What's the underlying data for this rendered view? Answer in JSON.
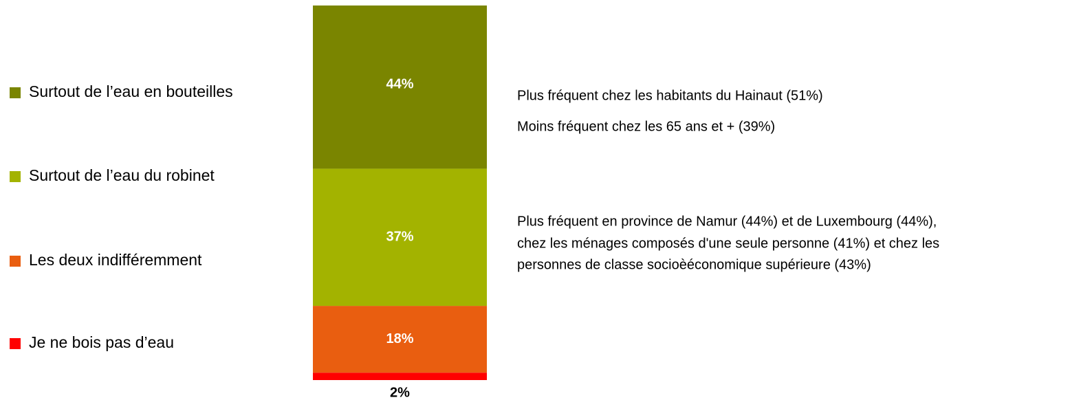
{
  "chart_data": {
    "type": "stacked_bar",
    "series": [
      {
        "name": "Surtout de l’eau en bouteilles",
        "color": "#7a8500",
        "values": [
          44
        ],
        "value_labels": [
          "44%"
        ]
      },
      {
        "name": "Surtout de l’eau du robinet",
        "color": "#a3b300",
        "values": [
          37
        ],
        "value_labels": [
          "37%"
        ]
      },
      {
        "name": "Les deux indifféremment",
        "color": "#e95e10",
        "values": [
          18
        ],
        "value_labels": [
          "18%"
        ]
      },
      {
        "name": "Je ne bois pas d’eau",
        "color": "#ff0000",
        "values": [
          2
        ],
        "value_labels": [
          "2%"
        ]
      }
    ],
    "annotations": [
      {
        "lines": [
          "Plus fréquent chez les habitants du Hainaut (51%)",
          "Moins fréquent chez les 65 ans et + (39%)"
        ]
      },
      {
        "lines": [
          "Plus fréquent en province de Namur (44%) et de Luxembourg (44%),",
          "chez les ménages composés d'une seule personne (41%) et chez les",
          "personnes de classe socioèéconomique supérieure (43%)"
        ]
      }
    ]
  }
}
